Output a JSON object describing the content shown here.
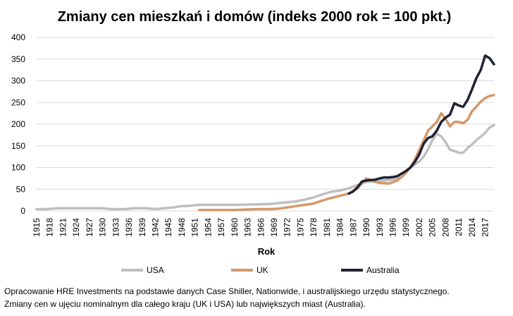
{
  "chart_data": {
    "type": "line",
    "title": "Zmiany cen mieszkań i domów (indeks 2000 rok = 100 pkt.)",
    "xlabel": "Rok",
    "ylabel": "",
    "ylim": [
      0,
      400
    ],
    "yticks": [
      "0",
      "50",
      "100",
      "150",
      "200",
      "250",
      "300",
      "350",
      "400"
    ],
    "xlim": [
      1915,
      2019
    ],
    "xticks": [
      "1915",
      "1918",
      "1921",
      "1924",
      "1927",
      "1930",
      "1933",
      "1936",
      "1939",
      "1942",
      "1945",
      "1948",
      "1951",
      "1954",
      "1957",
      "1960",
      "1963",
      "1966",
      "1969",
      "1972",
      "1975",
      "1978",
      "1981",
      "1984",
      "1987",
      "1990",
      "1993",
      "1996",
      "1999",
      "2002",
      "2005",
      "2008",
      "2011",
      "2014",
      "2017"
    ],
    "grid": true,
    "legend_position": "bottom",
    "series": [
      {
        "name": "USA",
        "color": "#bfbfbf",
        "x": [
          1915,
          1917,
          1920,
          1925,
          1930,
          1932,
          1935,
          1937,
          1940,
          1942,
          1944,
          1946,
          1948,
          1950,
          1952,
          1955,
          1960,
          1965,
          1968,
          1970,
          1972,
          1974,
          1976,
          1978,
          1980,
          1982,
          1984,
          1986,
          1988,
          1990,
          1992,
          1994,
          1996,
          1998,
          2000,
          2002,
          2003,
          2004,
          2005,
          2006,
          2007,
          2008,
          2009,
          2010,
          2011,
          2012,
          2013,
          2014,
          2015,
          2016,
          2017,
          2018,
          2019
        ],
        "y": [
          4,
          4,
          6,
          6,
          6,
          4,
          4,
          6,
          6,
          4,
          6,
          8,
          11,
          12,
          14,
          14,
          14,
          15,
          16,
          18,
          20,
          22,
          26,
          31,
          38,
          44,
          47,
          52,
          60,
          67,
          68,
          70,
          72,
          78,
          100,
          114,
          125,
          142,
          163,
          178,
          172,
          158,
          141,
          138,
          134,
          134,
          145,
          153,
          163,
          171,
          180,
          192,
          198
        ]
      },
      {
        "name": "UK",
        "color": "#d4986a",
        "x": [
          1952,
          1955,
          1960,
          1965,
          1968,
          1970,
          1972,
          1974,
          1976,
          1978,
          1980,
          1982,
          1984,
          1986,
          1988,
          1989,
          1990,
          1991,
          1992,
          1993,
          1994,
          1995,
          1996,
          1997,
          1998,
          1999,
          2000,
          2001,
          2002,
          2003,
          2004,
          2005,
          2006,
          2007,
          2008,
          2009,
          2010,
          2011,
          2012,
          2013,
          2014,
          2015,
          2016,
          2017,
          2018,
          2019
        ],
        "y": [
          2,
          2,
          2,
          4,
          4,
          5,
          8,
          11,
          14,
          17,
          24,
          30,
          35,
          40,
          52,
          64,
          75,
          71,
          67,
          64,
          64,
          63,
          66,
          70,
          78,
          88,
          100,
          118,
          140,
          162,
          185,
          195,
          205,
          225,
          212,
          195,
          205,
          205,
          202,
          210,
          230,
          240,
          252,
          260,
          265,
          267
        ]
      },
      {
        "name": "Australia",
        "color": "#1f2233",
        "x": [
          1986,
          1987,
          1988,
          1989,
          1990,
          1991,
          1992,
          1993,
          1994,
          1995,
          1996,
          1997,
          1998,
          1999,
          2000,
          2001,
          2002,
          2003,
          2004,
          2005,
          2006,
          2007,
          2008,
          2009,
          2010,
          2011,
          2012,
          2013,
          2014,
          2015,
          2016,
          2017,
          2018,
          2019
        ],
        "y": [
          40,
          45,
          55,
          68,
          70,
          71,
          72,
          75,
          77,
          77,
          78,
          80,
          86,
          92,
          100,
          113,
          130,
          155,
          168,
          172,
          185,
          205,
          215,
          222,
          248,
          243,
          240,
          256,
          280,
          306,
          325,
          358,
          352,
          338
        ]
      }
    ]
  },
  "footer": {
    "line1": "Opracowanie HRE Investments na podstawie danych Case Shiller, Nationwide, i australijskiego urzędu statystycznego.",
    "line2": "Zmiany cen w ujęciu nominalnym dla całego kraju (UK i USA) lub największych miast (Australia)."
  }
}
